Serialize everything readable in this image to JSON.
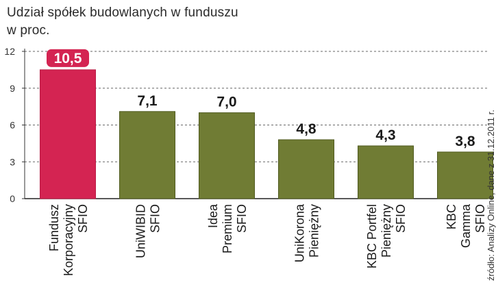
{
  "title_line1": "Udział spółek budowlanych w funduszu",
  "title_line2": "w proc.",
  "source": "źródło: Analizy Online, dane z 31.12.2011 r.",
  "colors": {
    "highlight": "#d42452",
    "bar": "#707c34",
    "bar_dark": "#4f5a1f",
    "grid": "#666666",
    "text": "#1a1a1a"
  },
  "chart_data": {
    "type": "bar",
    "title": "Udział spółek budowlanych w funduszu",
    "subtitle": "w proc.",
    "categories": [
      [
        "Fundusz",
        "Korporacyjny",
        "SFIO"
      ],
      [
        "UniWIBID",
        "SFIO"
      ],
      [
        "Idea",
        "Premium",
        "SFIO"
      ],
      [
        "UniKorona",
        "Pieniężny"
      ],
      [
        "KBC Portfel",
        "Pieniężny",
        "SFIO"
      ],
      [
        "KBC",
        "Gamma",
        "SFIO"
      ]
    ],
    "values": [
      10.5,
      7.1,
      7.0,
      4.8,
      4.3,
      3.8
    ],
    "value_labels": [
      "10,5",
      "7,1",
      "7,0",
      "4,8",
      "4,3",
      "3,8"
    ],
    "highlighted_index": 0,
    "yticks": [
      "0",
      "3",
      "6",
      "9",
      "12"
    ],
    "ytick_values": [
      0,
      3,
      6,
      9,
      12
    ],
    "ylim": [
      0,
      12
    ],
    "grid": true
  }
}
